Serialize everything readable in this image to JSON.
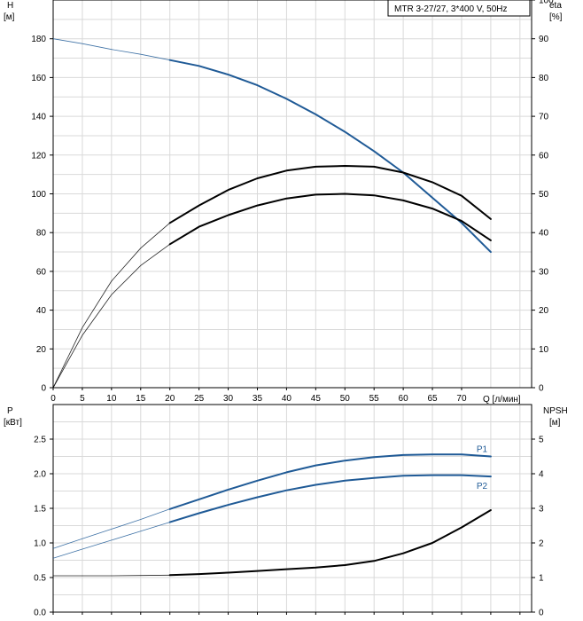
{
  "chart_data": [
    {
      "type": "line",
      "title": "MTR 3-27/27, 3*400 V, 50Hz",
      "xlabel": "Q [л/мин]",
      "x_ticks": [
        0,
        5,
        10,
        15,
        20,
        25,
        30,
        35,
        40,
        45,
        50,
        55,
        60,
        65,
        70
      ],
      "xlim": [
        0,
        82
      ],
      "ylabel_left": "H",
      "ylabel_left_unit": "[м]",
      "ylim_left": [
        0,
        200
      ],
      "yticks_left": [
        0,
        20,
        40,
        60,
        80,
        100,
        120,
        140,
        160,
        180
      ],
      "ylabel_right": "eta",
      "ylabel_right_unit": "[%]",
      "ylim_right": [
        0,
        100
      ],
      "yticks_right": [
        0,
        10,
        20,
        30,
        40,
        50,
        60,
        70,
        80,
        90,
        100
      ],
      "grid": true,
      "series": [
        {
          "axis": "left",
          "color": "#1f5a96",
          "x": [
            0,
            5,
            10,
            15,
            20,
            25,
            30,
            35,
            40,
            45,
            50,
            55,
            60,
            65,
            70,
            75
          ],
          "y": [
            180,
            177.5,
            174.5,
            172,
            169,
            166,
            161.5,
            156,
            149,
            141,
            132,
            122,
            111,
            98,
            85,
            70
          ]
        },
        {
          "axis": "right",
          "color": "#000000",
          "x": [
            0,
            5,
            10,
            15,
            20,
            25,
            30,
            35,
            40,
            45,
            50,
            55,
            60,
            65,
            70,
            75
          ],
          "y": [
            0,
            15.5,
            27.5,
            36,
            42.5,
            47,
            51,
            54,
            56,
            57,
            57.2,
            57,
            55.5,
            53,
            49.5,
            43.5
          ]
        },
        {
          "axis": "right",
          "color": "#000000",
          "x": [
            0,
            5,
            10,
            15,
            20,
            25,
            30,
            35,
            40,
            45,
            50,
            55,
            60,
            65,
            70,
            75
          ],
          "y": [
            0,
            13.5,
            24,
            31.5,
            37,
            41.5,
            44.5,
            47,
            48.8,
            49.8,
            50,
            49.6,
            48.3,
            46.2,
            43,
            38
          ]
        }
      ]
    },
    {
      "type": "line",
      "xlim": [
        0,
        82
      ],
      "ylabel_left": "P",
      "ylabel_left_unit": "[кВт]",
      "ylim_left": [
        0,
        3
      ],
      "yticks_left": [
        "0.0",
        "0.5",
        "1.0",
        "1.5",
        "2.0",
        "2.5"
      ],
      "ylabel_right": "NPSH",
      "ylabel_right_unit": "[м]",
      "ylim_right": [
        0,
        6
      ],
      "yticks_right": [
        0,
        1,
        2,
        3,
        4,
        5
      ],
      "grid": true,
      "series": [
        {
          "name": "P1",
          "axis": "left",
          "color": "#1f5a96",
          "x": [
            0,
            5,
            10,
            15,
            20,
            25,
            30,
            35,
            40,
            45,
            50,
            55,
            60,
            65,
            70,
            75
          ],
          "y": [
            0.92,
            1.06,
            1.2,
            1.34,
            1.49,
            1.63,
            1.77,
            1.9,
            2.02,
            2.12,
            2.19,
            2.24,
            2.27,
            2.28,
            2.28,
            2.25
          ]
        },
        {
          "name": "P2",
          "axis": "left",
          "color": "#1f5a96",
          "x": [
            0,
            5,
            10,
            15,
            20,
            25,
            30,
            35,
            40,
            45,
            50,
            55,
            60,
            65,
            70,
            75
          ],
          "y": [
            0.78,
            0.91,
            1.04,
            1.17,
            1.3,
            1.43,
            1.55,
            1.66,
            1.76,
            1.84,
            1.9,
            1.94,
            1.97,
            1.98,
            1.98,
            1.96
          ]
        },
        {
          "axis": "right",
          "color": "#000000",
          "x": [
            0,
            5,
            10,
            15,
            20,
            25,
            30,
            35,
            40,
            45,
            50,
            55,
            60,
            65,
            70,
            75
          ],
          "y": [
            1.05,
            1.05,
            1.05,
            1.06,
            1.07,
            1.1,
            1.14,
            1.19,
            1.24,
            1.29,
            1.36,
            1.48,
            1.7,
            2.0,
            2.45,
            2.95
          ]
        }
      ]
    }
  ]
}
